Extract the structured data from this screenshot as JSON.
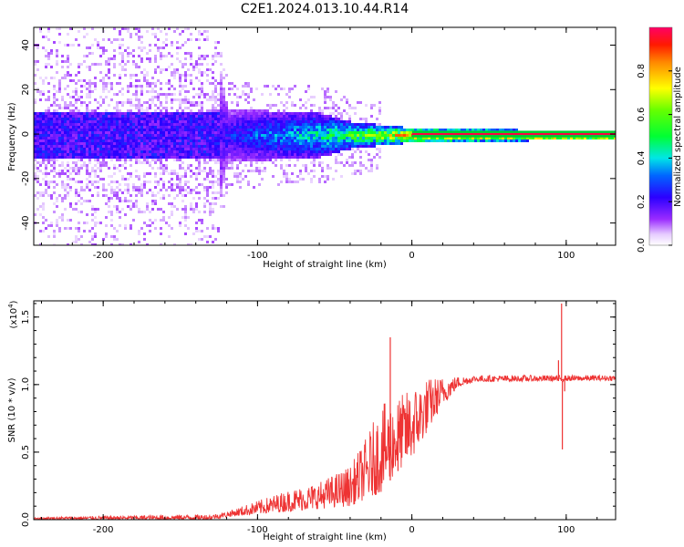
{
  "title": "C2E1.2024.013.10.44.R14",
  "chart_data": [
    {
      "type": "heatmap",
      "xlabel": "Height of straight line (km)",
      "ylabel": "Frequency (Hz)",
      "xlim": [
        -245,
        132
      ],
      "ylim": [
        -50,
        48
      ],
      "xticks": [
        -200,
        -100,
        0,
        100
      ],
      "yticks": [
        -40,
        -20,
        0,
        20,
        40
      ],
      "colorbar": {
        "label": "Normalized spectral amplitude",
        "range": [
          0,
          1
        ],
        "ticks": [
          "0.0",
          "0.2",
          "0.4",
          "0.6",
          "0.8"
        ]
      },
      "profile": [
        {
          "x": -245,
          "spread_hz": 48,
          "amp": 0.12
        },
        {
          "x": -130,
          "spread_hz": 48,
          "amp": 0.15
        },
        {
          "x": -120,
          "spread_hz": 12,
          "amp": 0.25
        },
        {
          "x": -60,
          "spread_hz": 10,
          "amp": 0.45
        },
        {
          "x": -40,
          "spread_hz": 6,
          "amp": 0.55
        },
        {
          "x": -10,
          "spread_hz": 4,
          "amp": 0.75
        },
        {
          "x": 0,
          "spread_hz": 3,
          "amp": 0.9
        },
        {
          "x": 132,
          "spread_hz": 2,
          "amp": 1.0
        }
      ]
    },
    {
      "type": "line",
      "xlabel": "Height of straight line (km)",
      "ylabel": "SNR (10 * v/v)",
      "y_multiplier": "(x10",
      "y_multiplier_exp": "4",
      "xlim": [
        -245,
        132
      ],
      "ylim": [
        0,
        1.62
      ],
      "xticks": [
        -200,
        -100,
        0,
        100
      ],
      "yticks": [
        0.0,
        0.5,
        1.0,
        1.5
      ],
      "color": "#ee3333",
      "envelope": [
        {
          "x": -245,
          "lo": 0.0,
          "hi": 0.02
        },
        {
          "x": -130,
          "lo": 0.0,
          "hi": 0.04
        },
        {
          "x": -120,
          "lo": 0.02,
          "hi": 0.06
        },
        {
          "x": -100,
          "lo": 0.04,
          "hi": 0.14
        },
        {
          "x": -80,
          "lo": 0.06,
          "hi": 0.22
        },
        {
          "x": -60,
          "lo": 0.08,
          "hi": 0.28
        },
        {
          "x": -40,
          "lo": 0.1,
          "hi": 0.4
        },
        {
          "x": -30,
          "lo": 0.15,
          "hi": 0.6
        },
        {
          "x": -20,
          "lo": 0.2,
          "hi": 0.85
        },
        {
          "x": -10,
          "lo": 0.35,
          "hi": 0.9
        },
        {
          "x": 0,
          "lo": 0.45,
          "hi": 0.98
        },
        {
          "x": 10,
          "lo": 0.65,
          "hi": 1.05
        },
        {
          "x": 20,
          "lo": 0.85,
          "hi": 1.06
        },
        {
          "x": 30,
          "lo": 0.98,
          "hi": 1.06
        },
        {
          "x": 40,
          "lo": 1.02,
          "hi": 1.07
        },
        {
          "x": 132,
          "lo": 1.03,
          "hi": 1.07
        }
      ],
      "spikes": [
        {
          "x": -14,
          "y": 1.35
        },
        {
          "x": -9,
          "y": 0.55
        },
        {
          "x": 95,
          "y": 1.18
        },
        {
          "x": 97,
          "y": 1.6
        },
        {
          "x": 97.5,
          "y": 0.52
        },
        {
          "x": 99,
          "y": 0.95
        }
      ]
    }
  ]
}
